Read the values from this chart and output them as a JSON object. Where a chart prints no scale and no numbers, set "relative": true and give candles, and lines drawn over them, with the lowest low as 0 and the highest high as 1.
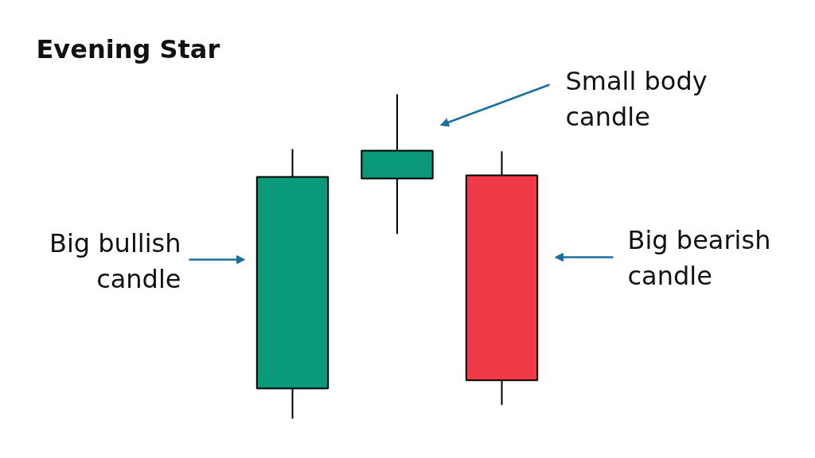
{
  "chart_data": {
    "type": "candlestick",
    "title": "Evening Star",
    "relative": true,
    "categories": [
      null,
      null,
      null
    ],
    "ohlc": [
      [
        0.093,
        0.831,
        0,
        0.745
      ],
      [
        0.74,
        1,
        0.569,
        0.826
      ],
      [
        0.75,
        0.824,
        0.042,
        0.118
      ]
    ],
    "colors": [
      "#0a9979",
      "#0a9979",
      "#f03a47"
    ],
    "annotations": [
      "Big bullish\ncandle",
      "Small body\ncandle",
      "Big bearish\ncandle"
    ]
  }
}
